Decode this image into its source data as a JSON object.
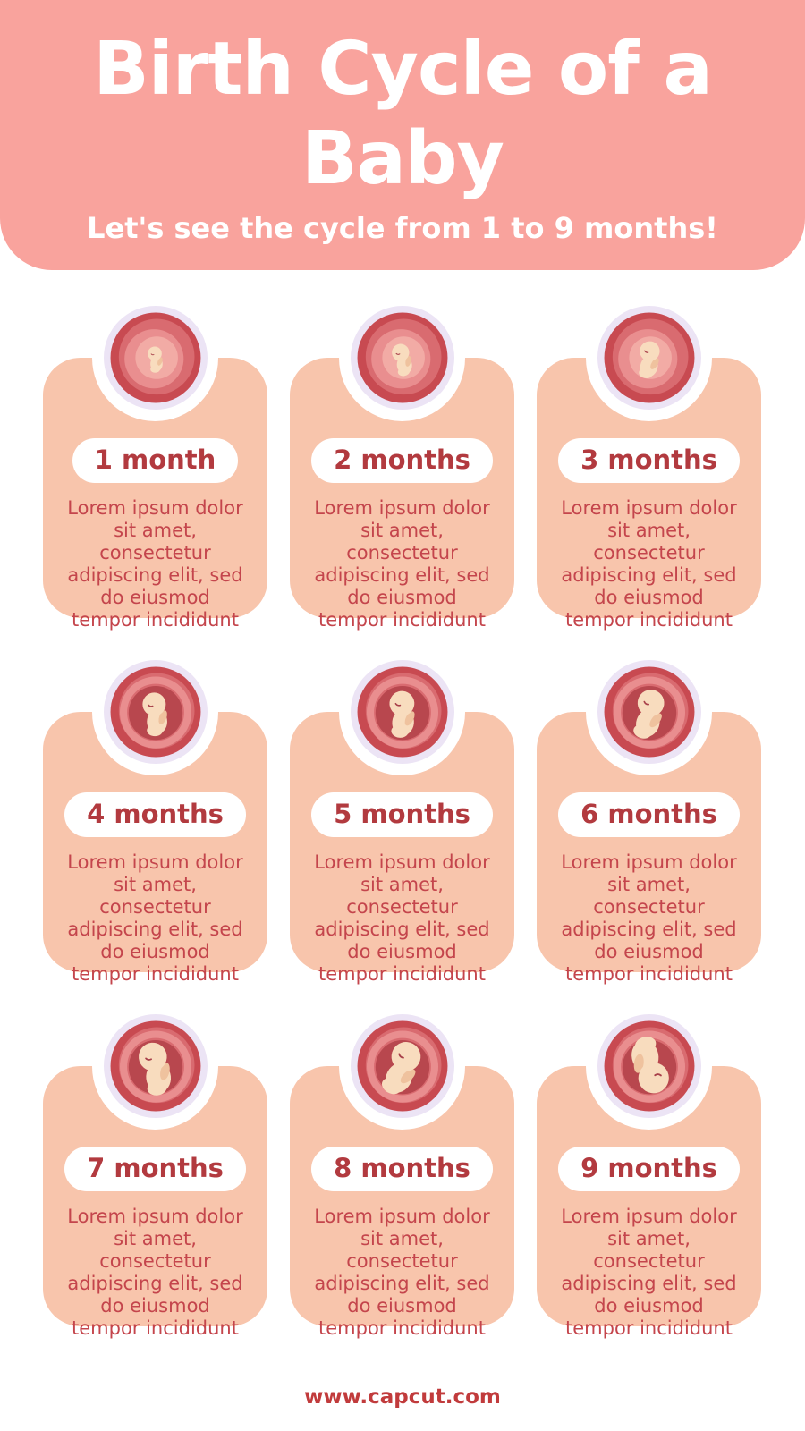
{
  "header": {
    "title": "Birth Cycle of a\nBaby",
    "subtitle": "Let's see the cycle from 1 to 9 months!"
  },
  "months": [
    {
      "label": "1 month",
      "description": "Lorem ipsum dolor\nsit amet,\nconsectetur\nadipiscing elit, sed\ndo eiusmod\ntempor incididunt"
    },
    {
      "label": "2 months",
      "description": "Lorem ipsum dolor\nsit amet,\nconsectetur\nadipiscing elit, sed\ndo eiusmod\ntempor incididunt"
    },
    {
      "label": "3 months",
      "description": "Lorem ipsum dolor\nsit amet,\nconsectetur\nadipiscing elit, sed\ndo eiusmod\ntempor incididunt"
    },
    {
      "label": "4 months",
      "description": "Lorem ipsum dolor\nsit amet,\nconsectetur\nadipiscing elit, sed\ndo eiusmod\ntempor incididunt"
    },
    {
      "label": "5 months",
      "description": "Lorem ipsum dolor\nsit amet,\nconsectetur\nadipiscing elit, sed\ndo eiusmod\ntempor incididunt"
    },
    {
      "label": "6 months",
      "description": "Lorem ipsum dolor\nsit amet,\nconsectetur\nadipiscing elit, sed\ndo eiusmod\ntempor incididunt"
    },
    {
      "label": "7 months",
      "description": "Lorem ipsum dolor\nsit amet,\nconsectetur\nadipiscing elit, sed\ndo eiusmod\ntempor incididunt"
    },
    {
      "label": "8 months",
      "description": "Lorem ipsum dolor\nsit amet,\nconsectetur\nadipiscing elit, sed\ndo eiusmod\ntempor incididunt"
    },
    {
      "label": "9 months",
      "description": "Lorem ipsum dolor\nsit amet,\nconsectetur\nadipiscing elit, sed\ndo eiusmod\ntempor incididunt"
    }
  ],
  "footer": {
    "url": "www.capcut.com"
  },
  "icons": {
    "badge": "fetus-in-womb-icon"
  },
  "colors": {
    "header_pink": "#F9A39D",
    "card_peach": "#F8C5AC",
    "title_white": "#FFFFFF",
    "label_red": "#B23A3F",
    "body_red": "#C4454C",
    "footer_red": "#C13B3C",
    "badge_lavender": "#ECE4F5",
    "womb_dark": "#C84A51",
    "womb_mid": "#D96B70",
    "womb_ring": "#E98E8F",
    "womb_light": "#F2ABA5",
    "womb_cavity": "#B8474E",
    "fetus_skin": "#F8DCBE",
    "fetus_skin_shade": "#EFC29E",
    "fetus_line": "#A8404A"
  }
}
